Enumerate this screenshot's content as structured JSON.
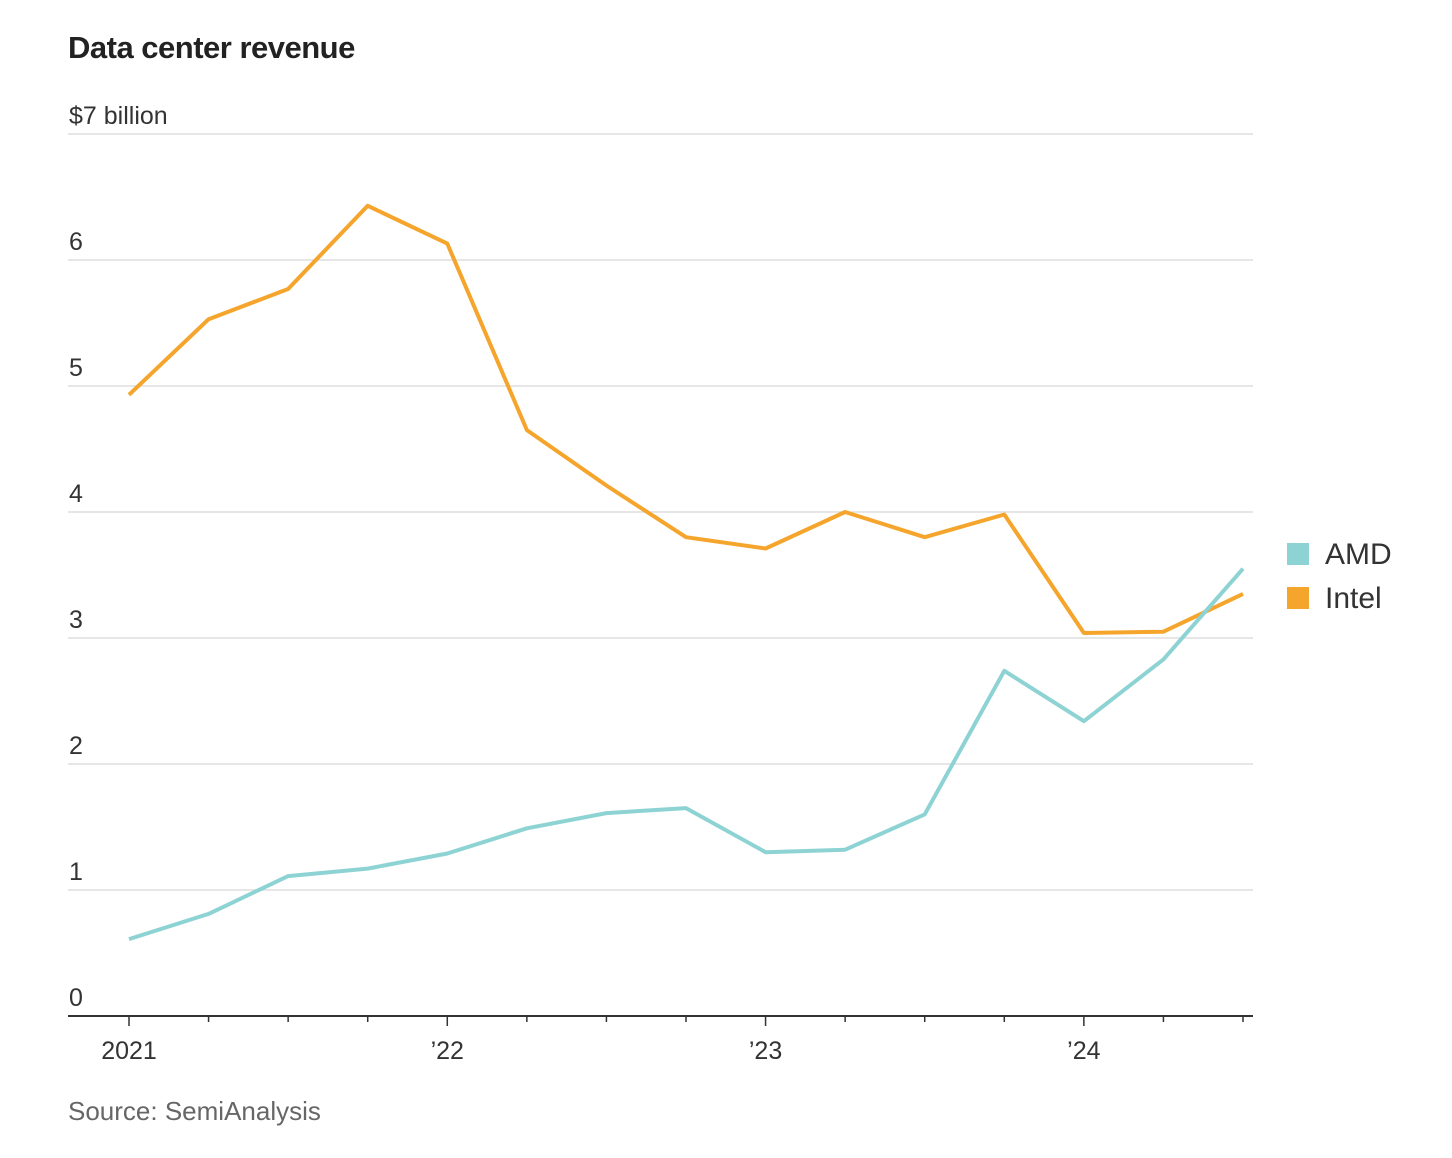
{
  "title": "Data center revenue",
  "source": "Source: SemiAnalysis",
  "chart_data": {
    "type": "line",
    "title": "Data center revenue",
    "unit_label": "$7 billion",
    "xlabel": "",
    "ylabel": "",
    "ylim": [
      0,
      7
    ],
    "yticks": [
      0,
      1,
      2,
      3,
      4,
      5,
      6,
      7
    ],
    "ytick_labels": [
      "0",
      "1",
      "2",
      "3",
      "4",
      "5",
      "6",
      "$7 billion"
    ],
    "x": [
      "Q1 2021",
      "Q2 2021",
      "Q3 2021",
      "Q4 2021",
      "Q1 2022",
      "Q2 2022",
      "Q3 2022",
      "Q4 2022",
      "Q1 2023",
      "Q2 2023",
      "Q3 2023",
      "Q4 2023",
      "Q1 2024",
      "Q2 2024",
      "Q3 2024"
    ],
    "xtick_labels": [
      "2021",
      "’22",
      "’23",
      "’24"
    ],
    "xtick_label_positions": [
      0,
      4,
      8,
      12
    ],
    "grid": true,
    "legend_position": "right",
    "series": [
      {
        "name": "AMD",
        "color": "#8ed3d4",
        "values": [
          0.61,
          0.81,
          1.11,
          1.17,
          1.29,
          1.49,
          1.61,
          1.65,
          1.3,
          1.32,
          1.6,
          2.74,
          2.34,
          2.83,
          3.55
        ]
      },
      {
        "name": "Intel",
        "color": "#f5a52c",
        "values": [
          4.93,
          5.53,
          5.77,
          6.43,
          6.13,
          4.65,
          4.21,
          3.8,
          3.71,
          4.0,
          3.8,
          3.98,
          3.04,
          3.05,
          3.35
        ]
      }
    ]
  }
}
